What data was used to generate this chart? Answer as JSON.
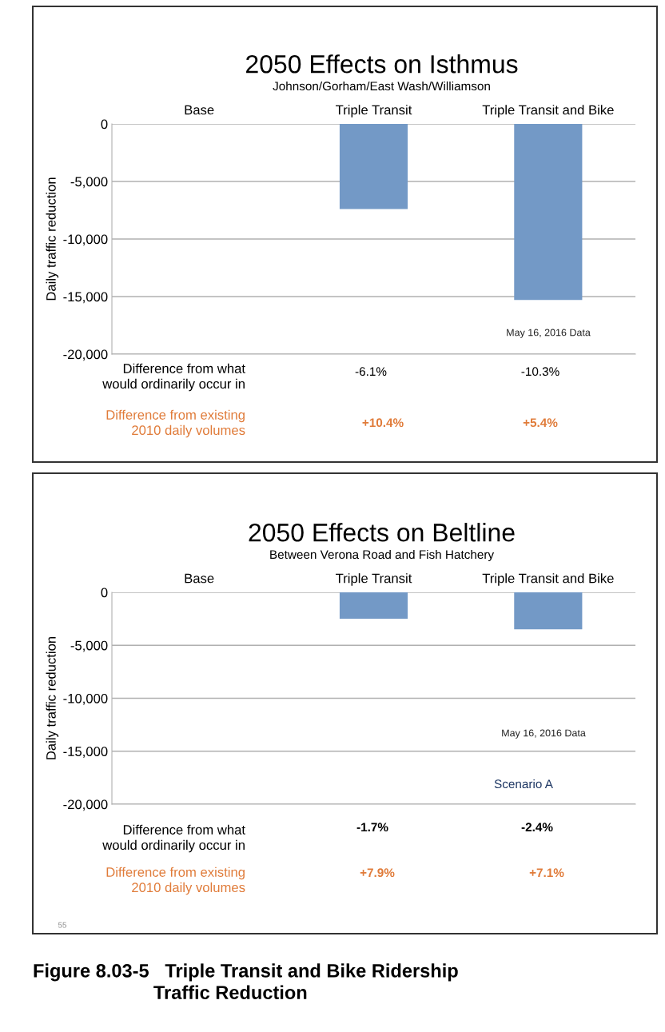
{
  "chart_data": [
    {
      "type": "bar",
      "title": "2050 Effects on Isthmus",
      "subtitle": "Johnson/Gorham/East Wash/Williamson",
      "ylabel": "Daily traffic reduction",
      "categories": [
        "Base",
        "Triple Transit",
        "Triple Transit and Bike"
      ],
      "series": [
        {
          "color": "#7399c6",
          "values": [
            null,
            -7400,
            -15300
          ]
        }
      ],
      "ylim": [
        -20000,
        0
      ],
      "yticks": [
        {
          "value": -20000,
          "label": "-20,000"
        },
        {
          "value": -15000,
          "label": "-15,000"
        },
        {
          "value": -10000,
          "label": "-10,000"
        },
        {
          "value": -5000,
          "label": "-5,000"
        },
        0
      ],
      "grid": "y",
      "annotations": [
        "May 16, 2016 Data",
        "Difference from what\nwould ordinarily occur in",
        "-6.1%",
        "-10.3%",
        "Difference from existing\n2010 daily volumes",
        "+10.4%",
        "+5.4%"
      ]
    },
    {
      "type": "bar",
      "title": "2050 Effects on Beltline",
      "subtitle": "Between Verona Road and Fish Hatchery",
      "ylabel": "Daily traffic reduction",
      "categories": [
        "Base",
        "Triple Transit",
        "Triple Transit and Bike"
      ],
      "series": [
        {
          "color": "#7399c6",
          "values": [
            null,
            -2500,
            -3500
          ]
        }
      ],
      "ylim": [
        -20000,
        0
      ],
      "yticks": [
        {
          "value": -20000,
          "label": "-20,000"
        },
        {
          "value": -15000,
          "label": "-15,000"
        },
        {
          "value": -10000,
          "label": "-10,000"
        },
        {
          "value": -5000,
          "label": "-5,000"
        },
        0
      ],
      "grid": "y",
      "annotations": [
        "May 16, 2016 Data",
        "Scenario A",
        "Difference from what\nwould ordinarily occur in",
        "-1.7%",
        "-2.4%",
        "Difference from existing\n2010 daily volumes",
        "+7.9%",
        "+7.1%",
        "55",
        "Figure 8.03-5   Triple Transit and Bike Ridership\n                       Traffic Reduction"
      ]
    }
  ]
}
